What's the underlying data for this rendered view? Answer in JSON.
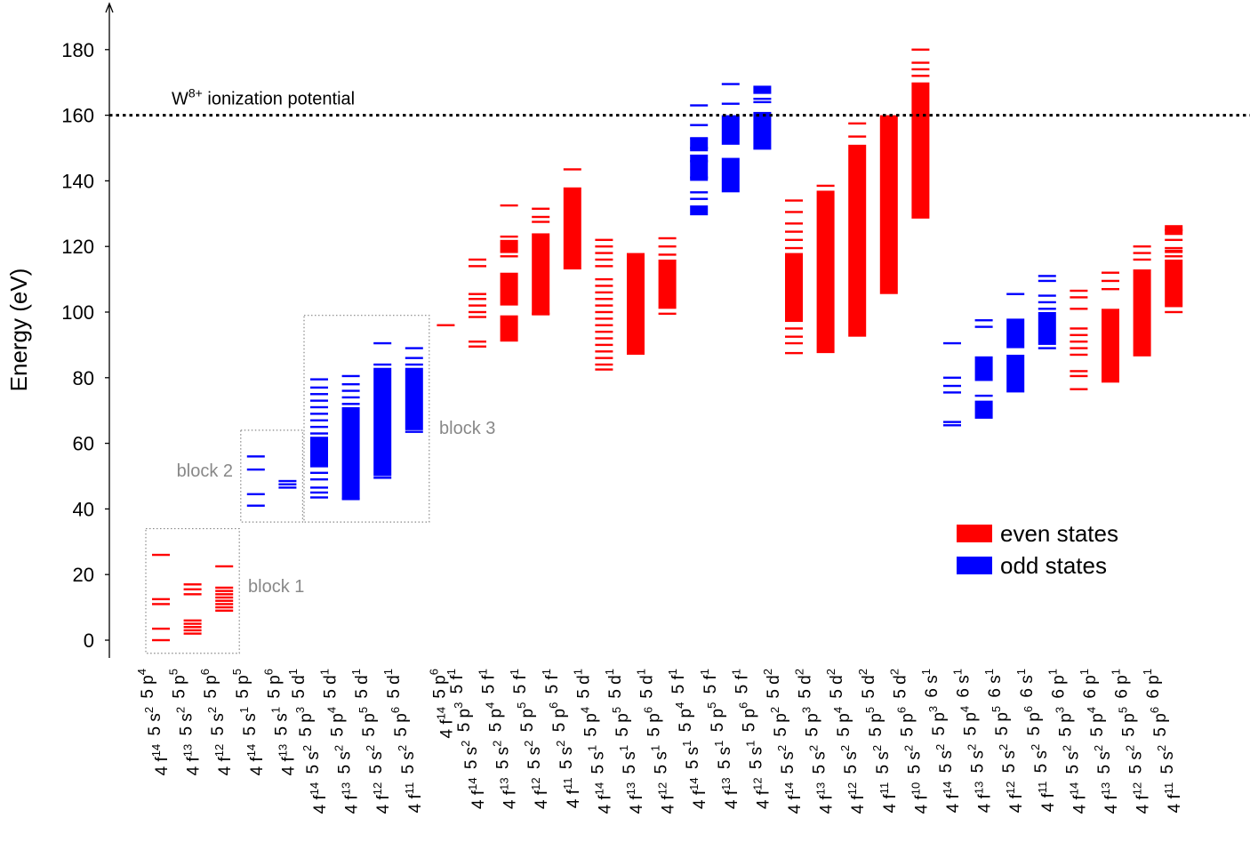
{
  "chart_data": {
    "type": "scatter",
    "ylabel": "Energy (eV)",
    "ylim": [
      -5,
      193
    ],
    "yticks": [
      0,
      20,
      40,
      60,
      80,
      100,
      120,
      140,
      160,
      180
    ],
    "ionization": {
      "value": 160,
      "label_base": "W",
      "label_sup": "8+",
      "label_rest": " ionization potential"
    },
    "legend": [
      {
        "key": "even",
        "label": "even states",
        "color": "#ff0000"
      },
      {
        "key": "odd",
        "label": "odd states",
        "color": "#0000ff"
      }
    ],
    "blocks": [
      {
        "label": "block 1",
        "from": 0,
        "to": 2,
        "ymin": -4,
        "ymax": 34
      },
      {
        "label": "block 2",
        "from": 3,
        "to": 4,
        "ymin": 36,
        "ymax": 64
      },
      {
        "label": "block 3",
        "from": 5,
        "to": 8,
        "ymin": 36,
        "ymax": 99
      }
    ],
    "configurations": [
      {
        "label": [
          [
            "4f",
            "14"
          ],
          [
            "5s",
            "2"
          ],
          [
            "5p",
            "4"
          ]
        ],
        "parity": "even",
        "lines": [
          0,
          3.5,
          11,
          12.5,
          26
        ],
        "bands": []
      },
      {
        "label": [
          [
            "4f",
            "13"
          ],
          [
            "5s",
            "2"
          ],
          [
            "5p",
            "5"
          ]
        ],
        "parity": "even",
        "lines": [
          2,
          3,
          4,
          5,
          6,
          14,
          15.5,
          17
        ],
        "bands": []
      },
      {
        "label": [
          [
            "4f",
            "12"
          ],
          [
            "5s",
            "2"
          ],
          [
            "5p",
            "6"
          ]
        ],
        "parity": "even",
        "lines": [
          9,
          10,
          11,
          12,
          13,
          14,
          15,
          16,
          22.5
        ],
        "bands": []
      },
      {
        "label": [
          [
            "4f",
            "14"
          ],
          [
            "5s",
            "1"
          ],
          [
            "5p",
            "5"
          ]
        ],
        "parity": "odd",
        "lines": [
          41,
          44.5,
          52,
          56
        ],
        "bands": []
      },
      {
        "label": [
          [
            "4f",
            "13"
          ],
          [
            "5s",
            "1"
          ],
          [
            "5p",
            "6"
          ]
        ],
        "parity": "odd",
        "lines": [
          46.5,
          47.5,
          48.5
        ],
        "bands": []
      },
      {
        "label": [
          [
            "4f",
            "14"
          ],
          [
            "5s",
            "2"
          ],
          [
            "5p",
            "3"
          ],
          [
            "5d",
            "1"
          ]
        ],
        "parity": "odd",
        "lines": [
          43.5,
          45,
          46.5,
          49,
          51,
          53,
          55,
          57,
          59,
          60,
          61,
          63,
          65,
          67,
          69,
          71,
          73,
          75,
          77,
          79.5
        ],
        "bands": [
          [
            53,
            62
          ]
        ]
      },
      {
        "label": [
          [
            "4f",
            "13"
          ],
          [
            "5s",
            "2"
          ],
          [
            "5p",
            "4"
          ],
          [
            "5d",
            "1"
          ]
        ],
        "parity": "odd",
        "lines": [
          43,
          72,
          74,
          76,
          78,
          80.5
        ],
        "bands": [
          [
            43,
            71
          ]
        ]
      },
      {
        "label": [
          [
            "4f",
            "12"
          ],
          [
            "5s",
            "2"
          ],
          [
            "5p",
            "5"
          ],
          [
            "5d",
            "1"
          ]
        ],
        "parity": "odd",
        "lines": [
          49.5,
          84,
          90.5
        ],
        "bands": [
          [
            50,
            83
          ]
        ]
      },
      {
        "label": [
          [
            "4f",
            "11"
          ],
          [
            "5s",
            "2"
          ],
          [
            "5p",
            "6"
          ],
          [
            "5d",
            "1"
          ]
        ],
        "parity": "odd",
        "lines": [
          63.5,
          84,
          86,
          89
        ],
        "bands": [
          [
            64,
            83
          ]
        ]
      },
      {
        "label": [
          [
            "4f",
            "14"
          ],
          [
            "5p",
            "6"
          ]
        ],
        "parity": "even",
        "lines": [
          96
        ],
        "bands": []
      },
      {
        "label": [
          [
            "4f",
            "14"
          ],
          [
            "5s",
            "2"
          ],
          [
            "5p",
            "3"
          ],
          [
            "5f",
            "1"
          ]
        ],
        "parity": "even",
        "lines": [
          89.5,
          91,
          98.5,
          100,
          102,
          104,
          105.5,
          114,
          116
        ],
        "bands": []
      },
      {
        "label": [
          [
            "4f",
            "13"
          ],
          [
            "5s",
            "2"
          ],
          [
            "5p",
            "4"
          ],
          [
            "5f",
            "1"
          ]
        ],
        "parity": "even",
        "lines": [
          117,
          123,
          132.5
        ],
        "bands": [
          [
            91,
            99
          ],
          [
            102,
            112
          ],
          [
            118,
            122
          ]
        ]
      },
      {
        "label": [
          [
            "4f",
            "12"
          ],
          [
            "5s",
            "2"
          ],
          [
            "5p",
            "5"
          ],
          [
            "5f",
            "1"
          ]
        ],
        "parity": "even",
        "lines": [
          99.5,
          127.5,
          129,
          131.5
        ],
        "bands": [
          [
            99,
            124
          ]
        ]
      },
      {
        "label": [
          [
            "4f",
            "11"
          ],
          [
            "5s",
            "2"
          ],
          [
            "5p",
            "6"
          ],
          [
            "5f",
            "1"
          ]
        ],
        "parity": "even",
        "lines": [
          143.5
        ],
        "bands": [
          [
            113,
            138
          ]
        ]
      },
      {
        "label": [
          [
            "4f",
            "14"
          ],
          [
            "5s",
            "1"
          ],
          [
            "5p",
            "4"
          ],
          [
            "5d",
            "1"
          ]
        ],
        "parity": "even",
        "lines": [
          82.5,
          84,
          86,
          88,
          90,
          92,
          94,
          96,
          98,
          100,
          102,
          104,
          106,
          108,
          110,
          114,
          116,
          118,
          120,
          122
        ],
        "bands": []
      },
      {
        "label": [
          [
            "4f",
            "13"
          ],
          [
            "5s",
            "1"
          ],
          [
            "5p",
            "5"
          ],
          [
            "5d",
            "1"
          ]
        ],
        "parity": "even",
        "lines": [],
        "bands": [
          [
            87,
            118
          ]
        ]
      },
      {
        "label": [
          [
            "4f",
            "12"
          ],
          [
            "5s",
            "1"
          ],
          [
            "5p",
            "6"
          ],
          [
            "5d",
            "1"
          ]
        ],
        "parity": "even",
        "lines": [
          99.5,
          117.5,
          120,
          122.5
        ],
        "bands": [
          [
            101,
            116
          ]
        ]
      },
      {
        "label": [
          [
            "4f",
            "14"
          ],
          [
            "5s",
            "1"
          ],
          [
            "5p",
            "4"
          ],
          [
            "5f",
            "1"
          ]
        ],
        "parity": "odd",
        "lines": [
          134.5,
          136.5,
          141,
          146,
          150,
          153,
          157,
          163
        ],
        "bands": [
          [
            129.5,
            132.5
          ],
          [
            140,
            148
          ],
          [
            149,
            153
          ]
        ]
      },
      {
        "label": [
          [
            "4f",
            "13"
          ],
          [
            "5s",
            "1"
          ],
          [
            "5p",
            "5"
          ],
          [
            "5f",
            "1"
          ]
        ],
        "parity": "odd",
        "lines": [
          163.5,
          169.5
        ],
        "bands": [
          [
            136.5,
            147
          ],
          [
            151,
            160
          ]
        ]
      },
      {
        "label": [
          [
            "4f",
            "12"
          ],
          [
            "5s",
            "1"
          ],
          [
            "5p",
            "6"
          ],
          [
            "5f",
            "1"
          ]
        ],
        "parity": "odd",
        "lines": [
          164,
          165
        ],
        "bands": [
          [
            149.5,
            161
          ],
          [
            166.5,
            169
          ]
        ]
      },
      {
        "label": [
          [
            "4f",
            "14"
          ],
          [
            "5s",
            "2"
          ],
          [
            "5p",
            "2"
          ],
          [
            "5d",
            "2"
          ]
        ],
        "parity": "even",
        "lines": [
          87.5,
          90.5,
          92.5,
          95,
          119.5,
          122,
          124.5,
          127,
          130.5,
          134
        ],
        "bands": [
          [
            97,
            118
          ]
        ]
      },
      {
        "label": [
          [
            "4f",
            "13"
          ],
          [
            "5s",
            "2"
          ],
          [
            "5p",
            "3"
          ],
          [
            "5d",
            "2"
          ]
        ],
        "parity": "even",
        "lines": [
          138.5
        ],
        "bands": [
          [
            87.5,
            137
          ]
        ]
      },
      {
        "label": [
          [
            "4f",
            "12"
          ],
          [
            "5s",
            "2"
          ],
          [
            "5p",
            "4"
          ],
          [
            "5d",
            "2"
          ]
        ],
        "parity": "even",
        "lines": [
          153.5,
          157.5
        ],
        "bands": [
          [
            92.5,
            151
          ]
        ]
      },
      {
        "label": [
          [
            "4f",
            "11"
          ],
          [
            "5s",
            "2"
          ],
          [
            "5p",
            "5"
          ],
          [
            "5d",
            "2"
          ]
        ],
        "parity": "even",
        "lines": [],
        "bands": [
          [
            105.5,
            160
          ]
        ]
      },
      {
        "label": [
          [
            "4f",
            "10"
          ],
          [
            "5s",
            "2"
          ],
          [
            "5p",
            "6"
          ],
          [
            "5d",
            "2"
          ]
        ],
        "parity": "even",
        "lines": [
          172,
          174,
          176,
          180
        ],
        "bands": [
          [
            128.5,
            170
          ]
        ]
      },
      {
        "label": [
          [
            "4f",
            "14"
          ],
          [
            "5s",
            "2"
          ],
          [
            "5p",
            "3"
          ],
          [
            "6s",
            "1"
          ]
        ],
        "parity": "odd",
        "lines": [
          65.5,
          66.5,
          75.5,
          77.5,
          80,
          90.5
        ],
        "bands": []
      },
      {
        "label": [
          [
            "4f",
            "13"
          ],
          [
            "5s",
            "2"
          ],
          [
            "5p",
            "4"
          ],
          [
            "6s",
            "1"
          ]
        ],
        "parity": "odd",
        "lines": [
          74.5,
          95.5,
          97.5
        ],
        "bands": [
          [
            67.5,
            73
          ],
          [
            79,
            86.5
          ]
        ]
      },
      {
        "label": [
          [
            "4f",
            "12"
          ],
          [
            "5s",
            "2"
          ],
          [
            "5p",
            "5"
          ],
          [
            "6s",
            "1"
          ]
        ],
        "parity": "odd",
        "lines": [
          105.5
        ],
        "bands": [
          [
            75.5,
            87
          ],
          [
            89,
            98
          ]
        ]
      },
      {
        "label": [
          [
            "4f",
            "11"
          ],
          [
            "5s",
            "2"
          ],
          [
            "5p",
            "6"
          ],
          [
            "6s",
            "1"
          ]
        ],
        "parity": "odd",
        "lines": [
          89,
          101,
          103,
          105,
          109.5,
          111
        ],
        "bands": [
          [
            90,
            100
          ]
        ]
      },
      {
        "label": [
          [
            "4f",
            "14"
          ],
          [
            "5s",
            "2"
          ],
          [
            "5p",
            "3"
          ],
          [
            "6p",
            "1"
          ]
        ],
        "parity": "even",
        "lines": [
          76.5,
          80.5,
          82,
          87,
          89,
          91,
          93,
          95,
          101,
          104.5,
          106.5
        ],
        "bands": []
      },
      {
        "label": [
          [
            "4f",
            "13"
          ],
          [
            "5s",
            "2"
          ],
          [
            "5p",
            "4"
          ],
          [
            "6p",
            "1"
          ]
        ],
        "parity": "even",
        "lines": [
          107,
          109.5,
          112
        ],
        "bands": [
          [
            78.5,
            101
          ]
        ]
      },
      {
        "label": [
          [
            "4f",
            "12"
          ],
          [
            "5s",
            "2"
          ],
          [
            "5p",
            "5"
          ],
          [
            "6p",
            "1"
          ]
        ],
        "parity": "even",
        "lines": [
          116,
          118,
          120
        ],
        "bands": [
          [
            86.5,
            113
          ]
        ]
      },
      {
        "label": [
          [
            "4f",
            "11"
          ],
          [
            "5s",
            "2"
          ],
          [
            "5p",
            "6"
          ],
          [
            "6p",
            "1"
          ]
        ],
        "parity": "even",
        "lines": [
          100,
          117,
          119.5,
          122,
          125
        ],
        "bands": [
          [
            101.5,
            116
          ],
          [
            118,
            119
          ],
          [
            123.5,
            126.5
          ]
        ]
      }
    ]
  }
}
